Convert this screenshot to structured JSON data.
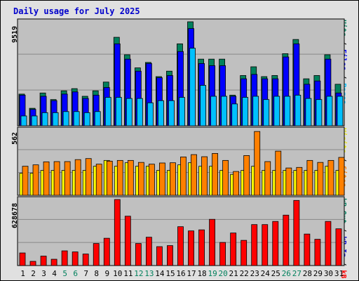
{
  "title": "Daily usage for July 2025",
  "colors": {
    "hits": "#00805c",
    "files": "#0000ff",
    "pages": "#00c0ff",
    "visits": "#ffff00",
    "sites": "#ff8000",
    "kb": "#ff0000",
    "weekend_label": "#00805c",
    "grid": "#888888",
    "panel_bg": "#c0c0c0"
  },
  "labels": {
    "top_axis_max": "9519",
    "mid_axis_max": "562",
    "bot_axis_max": "628678",
    "legend_pages": "Pages",
    "legend_files": "Files",
    "legend_hits": "Hits",
    "legend_sep": " / ",
    "legend_sites": "Sites",
    "legend_visits": "Visits",
    "legend_kbin": "kB In",
    "legend_kbout": "kB Out",
    "legend_kbf": "kB F"
  },
  "chart_data": {
    "type": "bar",
    "title": "Daily usage for July 2025",
    "categories": [
      "1",
      "2",
      "3",
      "4",
      "5",
      "6",
      "7",
      "8",
      "9",
      "10",
      "11",
      "12",
      "13",
      "14",
      "15",
      "16",
      "17",
      "18",
      "19",
      "20",
      "21",
      "22",
      "23",
      "24",
      "25",
      "26",
      "27",
      "28",
      "29",
      "30",
      "31"
    ],
    "weekend_days": [
      "5",
      "6",
      "12",
      "13",
      "19",
      "20",
      "26",
      "27"
    ],
    "panels": [
      {
        "name": "Hits / Files / Pages",
        "ylim": [
          0,
          9519
        ],
        "series": [
          {
            "name": "Hits",
            "values": [
              2900,
              1600,
              3000,
              2400,
              3200,
              3400,
              2700,
              3200,
              4000,
              8100,
              6500,
              5300,
              5800,
              4500,
              5000,
              7500,
              9519,
              6100,
              6100,
              6100,
              2800,
              4600,
              5400,
              4500,
              4600,
              6600,
              7900,
              4300,
              4600,
              6500,
              3800
            ]
          },
          {
            "name": "Files",
            "values": [
              2800,
              1500,
              2700,
              2300,
              2900,
              3100,
              2500,
              2800,
              3500,
              7500,
              6100,
              5000,
              5700,
              4400,
              4600,
              6800,
              8900,
              5700,
              5500,
              5500,
              2700,
              4300,
              4700,
              4300,
              4300,
              6300,
              7500,
              3800,
              4100,
              6100,
              3000
            ]
          },
          {
            "name": "Pages",
            "values": [
              900,
              900,
              1200,
              1200,
              1300,
              1300,
              1200,
              1300,
              2600,
              2600,
              2500,
              2500,
              2100,
              2300,
              2300,
              2600,
              7100,
              3700,
              2700,
              2700,
              2000,
              2600,
              2700,
              2400,
              2700,
              2700,
              2800,
              2500,
              2400,
              2700,
              2700
            ]
          }
        ]
      },
      {
        "name": "Visits / Sites",
        "ylim": [
          0,
          562
        ],
        "series": [
          {
            "name": "Sites",
            "values": [
              250,
              262,
              288,
              290,
              290,
              307,
              316,
              268,
              294,
              300,
              300,
              283,
              268,
              278,
              280,
              330,
              350,
              332,
              360,
              300,
              205,
              342,
              549,
              290,
              380,
              235,
              240,
              300,
              283,
              300,
              326
            ]
          },
          {
            "name": "Visits",
            "values": [
              190,
              190,
              214,
              214,
              214,
              214,
              214,
              250,
              300,
              250,
              280,
              250,
              250,
              214,
              214,
              262,
              280,
              250,
              250,
              214,
              180,
              214,
              250,
              214,
              214,
              214,
              214,
              214,
              214,
              250,
              214
            ]
          }
        ]
      },
      {
        "name": "kB F / kB In / kB Out",
        "ylim": [
          0,
          628678
        ],
        "series": [
          {
            "name": "kB F",
            "values": [
              120000,
              40000,
              90000,
              60000,
              140000,
              130000,
              110000,
              210000,
              260000,
              628678,
              470000,
              210000,
              270000,
              180000,
              190000,
              370000,
              330000,
              340000,
              440000,
              220000,
              310000,
              240000,
              390000,
              390000,
              420000,
              480000,
              620000,
              300000,
              250000,
              420000,
              350000
            ]
          }
        ]
      }
    ]
  }
}
